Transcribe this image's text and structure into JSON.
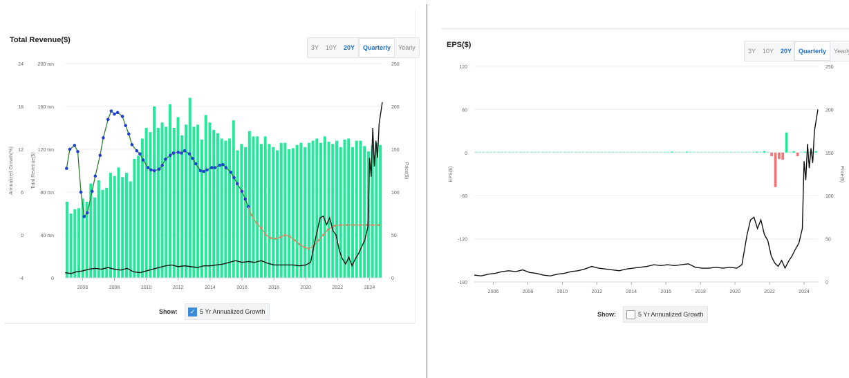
{
  "left": {
    "title": "Total Revenue($)",
    "range_buttons": [
      "3Y",
      "10Y",
      "20Y"
    ],
    "active_range": "20Y",
    "period_buttons": [
      "Quarterly",
      "Yearly"
    ],
    "active_period": "Quarterly",
    "show_label": "Show:",
    "checkbox_label": "5 Yr Annualized Growth",
    "checkbox_checked": true
  },
  "right": {
    "title": "EPS($)",
    "range_buttons": [
      "3Y",
      "10Y",
      "20Y"
    ],
    "active_range": "20Y",
    "period_buttons": [
      "Quarterly",
      "Yearly"
    ],
    "active_period": "Quarterly",
    "show_label": "Show:",
    "checkbox_label": "5 Yr Annualized Growth",
    "checkbox_checked": false
  },
  "chart_data": [
    {
      "type": "bar",
      "title": "Total Revenue($)",
      "ylabel_left_outer": "Annualized Growth(%)",
      "ylabel_left_inner": "Total Revenue($)",
      "ylabel_right": "Price($)",
      "growth_ticks": [
        "24",
        "18",
        "12",
        "6",
        "0",
        "-4"
      ],
      "growth_range": [
        -4,
        24
      ],
      "revenue_ticks": [
        "200 mn",
        "160 mn",
        "120 mn",
        "80 mn",
        "40 mn",
        "0"
      ],
      "revenue_range": [
        0,
        200
      ],
      "price_ticks": [
        "250",
        "200",
        "150",
        "100",
        "50",
        "0"
      ],
      "price_range": [
        0,
        250
      ],
      "x_ticks": [
        "2006",
        "2008",
        "2010",
        "2012",
        "2014",
        "2016",
        "2018",
        "2020",
        "2022",
        "2024"
      ],
      "x_range": [
        2004.9,
        2024.8
      ],
      "bar_color": "#26e89a",
      "revenue_values": [
        71,
        60,
        64,
        65,
        74,
        71,
        88,
        75,
        91,
        82,
        84,
        98,
        95,
        103,
        94,
        98,
        90,
        111,
        114,
        130,
        140,
        136,
        160,
        140,
        145,
        141,
        162,
        140,
        150,
        133,
        143,
        168,
        141,
        143,
        129,
        152,
        145,
        138,
        135,
        130,
        128,
        130,
        147,
        119,
        125,
        122,
        137,
        132,
        132,
        125,
        132,
        125,
        122,
        119,
        126,
        126,
        120,
        121,
        124,
        126,
        122,
        126,
        128,
        130,
        126,
        132,
        127,
        125,
        128,
        122,
        129,
        130,
        122,
        128,
        128,
        123,
        118,
        124,
        126,
        124
      ],
      "growth_line_color": "#2e7d32",
      "growth_marker_color": "#1f3fcf",
      "growth_points": [
        [
          2005.0,
          10.3
        ],
        [
          2005.2,
          12.8
        ],
        [
          2005.5,
          13.3
        ],
        [
          2005.7,
          12.5
        ],
        [
          2005.9,
          7.2
        ],
        [
          2006.1,
          4.0
        ],
        [
          2006.3,
          4.5
        ],
        [
          2006.6,
          7.3
        ],
        [
          2006.8,
          9.3
        ],
        [
          2007.1,
          12.0
        ],
        [
          2007.3,
          14.3
        ],
        [
          2007.6,
          16.7
        ],
        [
          2007.8,
          17.8
        ],
        [
          2008.0,
          17.4
        ],
        [
          2008.2,
          17.6
        ],
        [
          2008.5,
          17.1
        ],
        [
          2008.7,
          15.9
        ],
        [
          2008.9,
          14.8
        ],
        [
          2009.1,
          13.4
        ],
        [
          2009.4,
          12.6
        ],
        [
          2009.6,
          12.2
        ],
        [
          2009.8,
          11.4
        ],
        [
          2010.1,
          10.4
        ],
        [
          2010.3,
          10.1
        ],
        [
          2010.5,
          10.0
        ],
        [
          2010.8,
          10.2
        ],
        [
          2011.0,
          10.7
        ],
        [
          2011.2,
          11.5
        ],
        [
          2011.5,
          12.0
        ],
        [
          2011.7,
          12.3
        ],
        [
          2012.0,
          12.4
        ],
        [
          2012.2,
          12.3
        ],
        [
          2012.4,
          12.6
        ],
        [
          2012.7,
          12.2
        ],
        [
          2012.9,
          11.6
        ],
        [
          2013.1,
          10.9
        ],
        [
          2013.4,
          10.0
        ],
        [
          2013.6,
          9.9
        ],
        [
          2013.8,
          10.1
        ],
        [
          2014.1,
          10.4
        ],
        [
          2014.3,
          10.4
        ],
        [
          2014.6,
          10.7
        ],
        [
          2014.8,
          10.8
        ],
        [
          2015.0,
          10.4
        ],
        [
          2015.3,
          9.8
        ],
        [
          2015.5,
          9.1
        ],
        [
          2015.7,
          8.3
        ],
        [
          2016.0,
          7.3
        ],
        [
          2016.2,
          6.3
        ],
        [
          2016.4,
          5.3
        ]
      ],
      "growth_tail_color": "#d08a6a",
      "growth_tail_points": [
        [
          2016.6,
          4.2
        ],
        [
          2016.9,
          3.2
        ],
        [
          2017.2,
          2.5
        ],
        [
          2017.5,
          1.6
        ],
        [
          2017.8,
          1.2
        ],
        [
          2018.1,
          1.1
        ],
        [
          2018.4,
          1.3
        ],
        [
          2018.7,
          1.6
        ],
        [
          2019.0,
          1.4
        ],
        [
          2019.3,
          0.9
        ],
        [
          2019.6,
          0.4
        ],
        [
          2019.9,
          0.0
        ],
        [
          2020.2,
          -0.2
        ],
        [
          2020.5,
          0.2
        ],
        [
          2020.8,
          0.9
        ],
        [
          2021.1,
          1.6
        ],
        [
          2021.4,
          2.3
        ],
        [
          2021.8,
          2.8
        ],
        [
          2022.2,
          2.9
        ],
        [
          2022.6,
          2.9
        ],
        [
          2023.0,
          2.9
        ],
        [
          2023.4,
          2.9
        ],
        [
          2023.8,
          2.9
        ],
        [
          2024.2,
          2.9
        ],
        [
          2024.6,
          2.9
        ]
      ],
      "price_line_color": "#111111",
      "price_points": [
        [
          2004.9,
          6
        ],
        [
          2005.3,
          5
        ],
        [
          2005.6,
          7
        ],
        [
          2006.0,
          8
        ],
        [
          2006.4,
          10
        ],
        [
          2006.8,
          11
        ],
        [
          2007.2,
          10
        ],
        [
          2007.6,
          12
        ],
        [
          2008.0,
          10
        ],
        [
          2008.4,
          9
        ],
        [
          2008.8,
          11
        ],
        [
          2009.2,
          7
        ],
        [
          2009.6,
          6
        ],
        [
          2010.0,
          8
        ],
        [
          2010.4,
          10
        ],
        [
          2010.8,
          12
        ],
        [
          2011.2,
          14
        ],
        [
          2011.6,
          15
        ],
        [
          2012.0,
          13
        ],
        [
          2012.4,
          14
        ],
        [
          2012.8,
          13
        ],
        [
          2013.2,
          12
        ],
        [
          2013.6,
          14
        ],
        [
          2014.0,
          14
        ],
        [
          2014.4,
          15
        ],
        [
          2014.8,
          16
        ],
        [
          2015.2,
          18
        ],
        [
          2015.6,
          20
        ],
        [
          2016.0,
          18
        ],
        [
          2016.4,
          19
        ],
        [
          2016.8,
          18
        ],
        [
          2017.2,
          20
        ],
        [
          2017.6,
          17
        ],
        [
          2018.0,
          15
        ],
        [
          2018.4,
          15
        ],
        [
          2018.8,
          15
        ],
        [
          2019.2,
          15
        ],
        [
          2019.6,
          14
        ],
        [
          2020.0,
          15
        ],
        [
          2020.3,
          18
        ],
        [
          2020.6,
          45
        ],
        [
          2020.9,
          70
        ],
        [
          2021.1,
          72
        ],
        [
          2021.3,
          62
        ],
        [
          2021.5,
          70
        ],
        [
          2021.7,
          55
        ],
        [
          2021.9,
          50
        ],
        [
          2022.1,
          32
        ],
        [
          2022.3,
          22
        ],
        [
          2022.5,
          16
        ],
        [
          2022.7,
          24
        ],
        [
          2022.9,
          14
        ],
        [
          2023.1,
          22
        ],
        [
          2023.3,
          28
        ],
        [
          2023.5,
          36
        ],
        [
          2023.7,
          44
        ],
        [
          2023.9,
          60
        ],
        [
          2024.0,
          140
        ],
        [
          2024.1,
          118
        ],
        [
          2024.2,
          175
        ],
        [
          2024.3,
          130
        ],
        [
          2024.4,
          160
        ],
        [
          2024.5,
          140
        ],
        [
          2024.6,
          180
        ],
        [
          2024.8,
          205
        ]
      ]
    },
    {
      "type": "bar",
      "title": "EPS($)",
      "ylabel_left": "EPS($)",
      "ylabel_right": "Price($)",
      "eps_ticks": [
        "120",
        "60",
        "0",
        "-60",
        "-120",
        "-180"
      ],
      "eps_range": [
        -180,
        120
      ],
      "price_ticks": [
        "250",
        "200",
        "150",
        "100",
        "50",
        "0"
      ],
      "price_range": [
        0,
        250
      ],
      "x_ticks": [
        "2006",
        "2008",
        "2010",
        "2012",
        "2014",
        "2016",
        "2018",
        "2020",
        "2022",
        "2024"
      ],
      "x_range": [
        2004.9,
        2024.8
      ],
      "positive_color": "#26e89a",
      "negative_color": "#f07878",
      "eps_values": [
        0,
        0,
        0,
        0,
        0,
        0,
        0,
        0.5,
        0,
        0,
        0,
        0.5,
        0,
        0,
        0,
        0,
        0,
        0,
        0,
        0,
        0,
        0,
        0.5,
        0.5,
        0,
        0,
        0,
        0,
        0,
        0.5,
        0,
        0,
        0,
        0,
        0,
        0,
        0,
        0,
        0,
        0.5,
        0,
        0,
        0,
        0,
        0,
        0,
        0,
        0,
        0,
        0,
        0.5,
        0.5,
        0.5,
        1,
        0,
        0.5,
        0.5,
        1,
        0,
        0,
        0.5,
        0,
        0,
        0,
        0,
        0,
        0,
        0,
        0,
        0,
        0,
        0,
        0,
        0,
        0,
        0,
        1,
        0,
        2,
        0,
        -5,
        -48,
        -9,
        -10,
        28,
        0,
        2,
        -5,
        0,
        1,
        0.5,
        0,
        2
      ],
      "price_points": [
        [
          2004.9,
          8
        ],
        [
          2005.3,
          7
        ],
        [
          2005.7,
          9
        ],
        [
          2006.1,
          10
        ],
        [
          2006.5,
          12
        ],
        [
          2006.9,
          13
        ],
        [
          2007.3,
          12
        ],
        [
          2007.7,
          14
        ],
        [
          2008.1,
          11
        ],
        [
          2008.5,
          10
        ],
        [
          2008.9,
          8
        ],
        [
          2009.3,
          7
        ],
        [
          2009.7,
          9
        ],
        [
          2010.1,
          10
        ],
        [
          2010.5,
          12
        ],
        [
          2010.9,
          13
        ],
        [
          2011.3,
          15
        ],
        [
          2011.7,
          18
        ],
        [
          2012.1,
          16
        ],
        [
          2012.5,
          15
        ],
        [
          2012.9,
          14
        ],
        [
          2013.3,
          13
        ],
        [
          2013.7,
          15
        ],
        [
          2014.1,
          16
        ],
        [
          2014.5,
          17
        ],
        [
          2014.9,
          18
        ],
        [
          2015.3,
          20
        ],
        [
          2015.7,
          19
        ],
        [
          2016.1,
          20
        ],
        [
          2016.5,
          19
        ],
        [
          2016.9,
          20
        ],
        [
          2017.3,
          21
        ],
        [
          2017.7,
          17
        ],
        [
          2018.1,
          16
        ],
        [
          2018.5,
          16
        ],
        [
          2018.9,
          17
        ],
        [
          2019.3,
          16
        ],
        [
          2019.7,
          17
        ],
        [
          2020.1,
          16
        ],
        [
          2020.4,
          20
        ],
        [
          2020.7,
          55
        ],
        [
          2020.9,
          72
        ],
        [
          2021.1,
          75
        ],
        [
          2021.3,
          62
        ],
        [
          2021.5,
          72
        ],
        [
          2021.7,
          55
        ],
        [
          2021.9,
          48
        ],
        [
          2022.1,
          30
        ],
        [
          2022.3,
          22
        ],
        [
          2022.5,
          18
        ],
        [
          2022.7,
          25
        ],
        [
          2022.9,
          16
        ],
        [
          2023.1,
          24
        ],
        [
          2023.3,
          30
        ],
        [
          2023.5,
          38
        ],
        [
          2023.7,
          45
        ],
        [
          2023.9,
          62
        ],
        [
          2024.0,
          140
        ],
        [
          2024.1,
          118
        ],
        [
          2024.2,
          160
        ],
        [
          2024.3,
          132
        ],
        [
          2024.4,
          155
        ],
        [
          2024.5,
          138
        ],
        [
          2024.6,
          175
        ],
        [
          2024.8,
          200
        ]
      ]
    }
  ]
}
